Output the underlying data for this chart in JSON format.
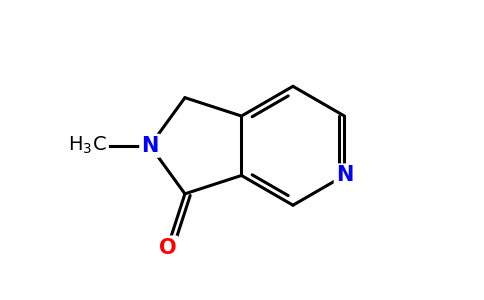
{
  "background_color": "#ffffff",
  "bond_color": "#000000",
  "N_color": "#0000ff",
  "O_color": "#ff0000",
  "figsize": [
    4.84,
    3.0
  ],
  "dpi": 100,
  "bond_lw": 2.2,
  "font_size_atom": 15,
  "font_size_methyl": 14,
  "xlim": [
    0.0,
    10.0
  ],
  "ylim": [
    0.0,
    7.0
  ]
}
